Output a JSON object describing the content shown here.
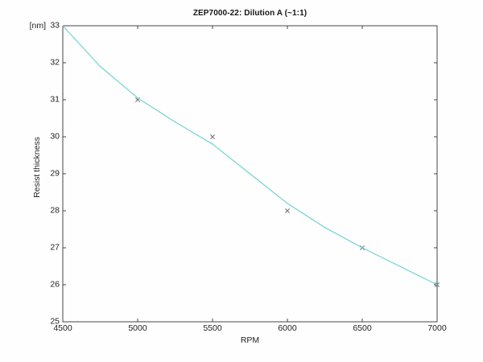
{
  "chart_data": {
    "type": "scatter",
    "title": "ZEP7000-22: Dilution A (~1:1)",
    "xlabel": "RPM",
    "ylabel": "Resist thickness",
    "y_unit_label": "[nm]",
    "xlim": [
      4500,
      7000
    ],
    "ylim": [
      25,
      33
    ],
    "xticks": [
      4500,
      5000,
      5500,
      6000,
      6500,
      7000
    ],
    "yticks": [
      25,
      26,
      27,
      28,
      29,
      30,
      31,
      32,
      33
    ],
    "grid": false,
    "legend": false,
    "series": [
      {
        "name": "measured-thickness",
        "kind": "scatter",
        "marker": "x",
        "color": "#6e6e6e",
        "x": [
          5000,
          5500,
          6000,
          6500,
          7000
        ],
        "y": [
          31,
          30,
          28,
          27,
          26
        ]
      },
      {
        "name": "fit-curve",
        "kind": "line",
        "color": "#72d2d4",
        "x": [
          4500,
          4750,
          5000,
          5250,
          5500,
          5750,
          6000,
          6250,
          6500,
          6750,
          7000
        ],
        "y": [
          33.0,
          31.9,
          31.05,
          30.4,
          29.8,
          29.0,
          28.2,
          27.55,
          27.0,
          26.5,
          26.0
        ]
      }
    ],
    "colors": {
      "axis": "#454545",
      "text": "#222222",
      "background": "#fefefe"
    }
  }
}
